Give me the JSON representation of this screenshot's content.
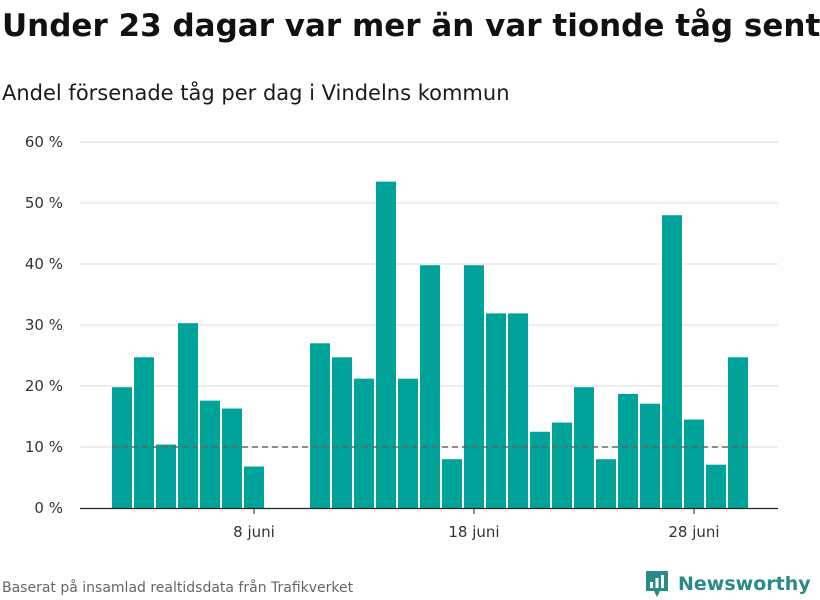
{
  "chart_data": {
    "type": "bar",
    "title": "Under 23 dagar var mer än var tionde tåg sent",
    "subtitle": "Andel försenade tåg per dag i Vindelns kommun",
    "x_label_days": [
      "8 juni",
      "18 juni",
      "28 juni"
    ],
    "x_tick_labels": [
      {
        "day": 8,
        "label": "8 juni"
      },
      {
        "day": 18,
        "label": "18 juni"
      },
      {
        "day": 28,
        "label": "28 juni"
      }
    ],
    "x": [
      2,
      3,
      4,
      5,
      6,
      7,
      8,
      9,
      10,
      11,
      12,
      13,
      14,
      15,
      16,
      17,
      18,
      19,
      20,
      21,
      22,
      23,
      24,
      25,
      26,
      27,
      28,
      29,
      30
    ],
    "values": [
      19.8,
      24.7,
      10.4,
      30.3,
      17.6,
      16.3,
      6.8,
      null,
      null,
      27.0,
      24.7,
      21.2,
      53.5,
      21.2,
      39.8,
      8.0,
      39.8,
      31.9,
      31.9,
      12.5,
      14.0,
      19.8,
      8.0,
      18.7,
      17.1,
      48.0,
      14.5,
      7.1,
      24.7
    ],
    "y_ticks": [
      0,
      10,
      20,
      30,
      40,
      50,
      60
    ],
    "y_tick_labels": [
      "0 %",
      "10 %",
      "20 %",
      "30 %",
      "40 %",
      "50 %",
      "60 %"
    ],
    "ylim": [
      0,
      62
    ],
    "xlim": [
      1,
      32
    ],
    "reference_line": 10,
    "grid": true,
    "bar_color": "#00a39a",
    "reference_line_color": "#666666"
  },
  "source": "Baserat på insamlad realtidsdata från Trafikverket",
  "brand": {
    "name": "Newsworthy",
    "icon": "newsworthy-logo-icon",
    "color": "#2a8a8a"
  }
}
